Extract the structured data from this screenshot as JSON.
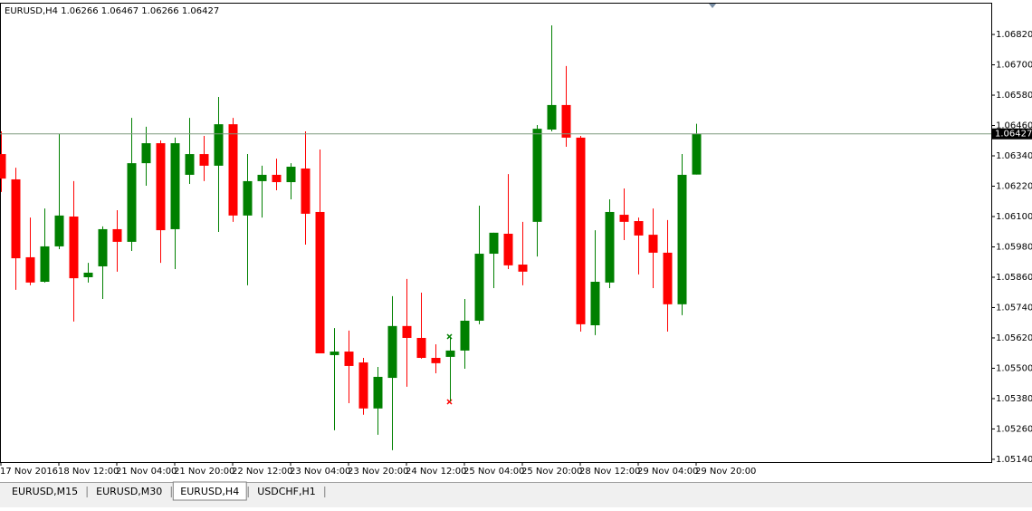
{
  "chart_data": {
    "type": "candlestick",
    "symbol": "EURUSD,H4",
    "up_color": "#008000",
    "down_color": "#ff0000",
    "current_price_line": true,
    "categories": [
      "17 Nov 2016",
      null,
      null,
      null,
      "18 Nov 12:00",
      null,
      null,
      null,
      "21 Nov 04:00",
      null,
      null,
      null,
      "21 Nov 20:00",
      null,
      null,
      null,
      "22 Nov 12:00",
      null,
      null,
      null,
      "23 Nov 04:00",
      null,
      null,
      null,
      "23 Nov 20:00",
      null,
      null,
      null,
      "24 Nov 12:00",
      null,
      null,
      null,
      "25 Nov 04:00",
      null,
      null,
      null,
      "25 Nov 20:00",
      null,
      null,
      null,
      "28 Nov 12:00",
      null,
      null,
      null,
      "29 Nov 04:00",
      null,
      null,
      null,
      "29 Nov 20:00"
    ],
    "open": [
      1.06347,
      1.06247,
      1.05939,
      1.05842,
      1.05982,
      1.061,
      1.0586,
      1.05903,
      1.0605,
      1.06,
      1.06311,
      1.0639,
      1.0605,
      1.06265,
      1.06347,
      1.06301,
      1.06465,
      1.06104,
      1.0624,
      1.06265,
      1.06236,
      1.0629,
      1.06118,
      1.05552,
      1.05566,
      1.05523,
      1.05341,
      1.05462,
      1.05667,
      1.0562,
      1.05541,
      1.05545,
      1.0557,
      1.05688,
      1.05953,
      1.06032,
      1.0591,
      1.06079,
      1.06444,
      1.06541,
      1.06412,
      1.0567,
      1.05839,
      1.06107,
      1.06082,
      1.06028,
      1.05957,
      1.05753,
      1.06266
    ],
    "high": [
      1.06437,
      1.06293,
      1.06096,
      1.06132,
      1.06426,
      1.0624,
      1.05917,
      1.06061,
      1.06125,
      1.0649,
      1.06455,
      1.06401,
      1.06412,
      1.0649,
      1.06419,
      1.06573,
      1.0649,
      1.06347,
      1.06301,
      1.06329,
      1.06311,
      1.06437,
      1.06365,
      1.05659,
      1.05649,
      1.05541,
      1.05505,
      1.05785,
      1.05853,
      1.05799,
      1.05595,
      1.05624,
      1.05774,
      1.06143,
      1.06036,
      1.06268,
      1.06079,
      1.06462,
      1.06856,
      1.06695,
      1.06419,
      1.06046,
      1.06168,
      1.06211,
      1.06096,
      1.06132,
      1.06086,
      1.06347,
      1.06467
    ],
    "low": [
      1.06197,
      1.0581,
      1.05828,
      1.05839,
      1.05971,
      1.05685,
      1.05839,
      1.05774,
      1.05882,
      1.05964,
      1.06222,
      1.05917,
      1.05892,
      1.06229,
      1.0624,
      1.06039,
      1.06079,
      1.05828,
      1.06096,
      1.06204,
      1.06168,
      1.05989,
      1.05559,
      1.05255,
      1.05362,
      1.05316,
      1.05237,
      1.05176,
      1.05427,
      1.05538,
      1.0548,
      1.05369,
      1.05498,
      1.05674,
      1.05817,
      1.05892,
      1.05828,
      1.05942,
      1.06437,
      1.06376,
      1.05645,
      1.05631,
      1.05817,
      1.06007,
      1.05871,
      1.05817,
      1.05645,
      1.0571,
      1.06266
    ],
    "close": [
      1.0625,
      1.05935,
      1.05839,
      1.05982,
      1.06104,
      1.05856,
      1.05878,
      1.0605,
      1.06,
      1.06311,
      1.0639,
      1.06046,
      1.0639,
      1.06347,
      1.06301,
      1.06465,
      1.06104,
      1.0624,
      1.06265,
      1.06236,
      1.06297,
      1.06111,
      1.05559,
      1.05566,
      1.05509,
      1.05341,
      1.05466,
      1.05667,
      1.0562,
      1.05541,
      1.0552,
      1.0557,
      1.05688,
      1.05953,
      1.06036,
      1.05907,
      1.05882,
      1.06447,
      1.06541,
      1.06412,
      1.05674,
      1.05842,
      1.06118,
      1.06079,
      1.06025,
      1.05957,
      1.05753,
      1.06265,
      1.06427
    ],
    "ylim": [
      1.05129,
      1.06942
    ],
    "yticks": [
      {
        "value": 1.0682,
        "label": "1.06820"
      },
      {
        "value": 1.067,
        "label": "1.06700"
      },
      {
        "value": 1.0658,
        "label": "1.06580"
      },
      {
        "value": 1.0646,
        "label": "1.06460"
      },
      {
        "value": 1.0634,
        "label": "1.06340"
      },
      {
        "value": 1.0622,
        "label": "1.06220"
      },
      {
        "value": 1.061,
        "label": "1.06100"
      },
      {
        "value": 1.0598,
        "label": "1.05980"
      },
      {
        "value": 1.0586,
        "label": "1.05860"
      },
      {
        "value": 1.0574,
        "label": "1.05740"
      },
      {
        "value": 1.0562,
        "label": "1.05620"
      },
      {
        "value": 1.055,
        "label": "1.05500"
      },
      {
        "value": 1.0538,
        "label": "1.05380"
      },
      {
        "value": 1.0526,
        "label": "1.05260"
      },
      {
        "value": 1.0514,
        "label": "1.05140"
      }
    ]
  },
  "tabs": [
    "EURUSD,M15",
    "EURUSD,M30",
    "EURUSD,H4",
    "USDCHF,H1"
  ],
  "active_tab": 2
}
